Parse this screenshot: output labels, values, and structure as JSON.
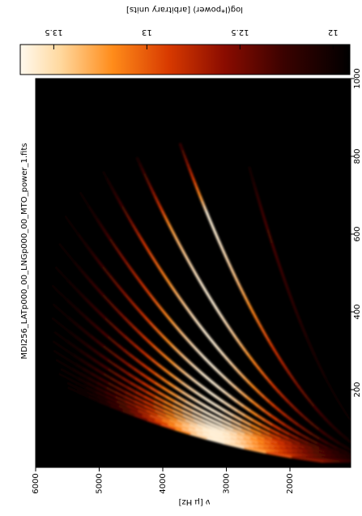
{
  "chart_data": {
    "type": "heatmap",
    "title": "MDI256_LATp000_00_LNGp000_00_MTO_power_1.fits",
    "xlabel": "ν [μ Hz]",
    "xlim": [
      6000,
      1045
    ],
    "xticks": [
      6000,
      5000,
      4000,
      3000,
      2000
    ],
    "ylim": [
      0,
      1000
    ],
    "yticks": [
      200,
      400,
      600,
      800,
      1000
    ],
    "colorbar": {
      "label": "log(l*power) [arbitrary units]",
      "lim": [
        13.68,
        11.91
      ],
      "ticks": [
        13.5,
        13.0,
        12.5,
        12.0
      ]
    }
  }
}
